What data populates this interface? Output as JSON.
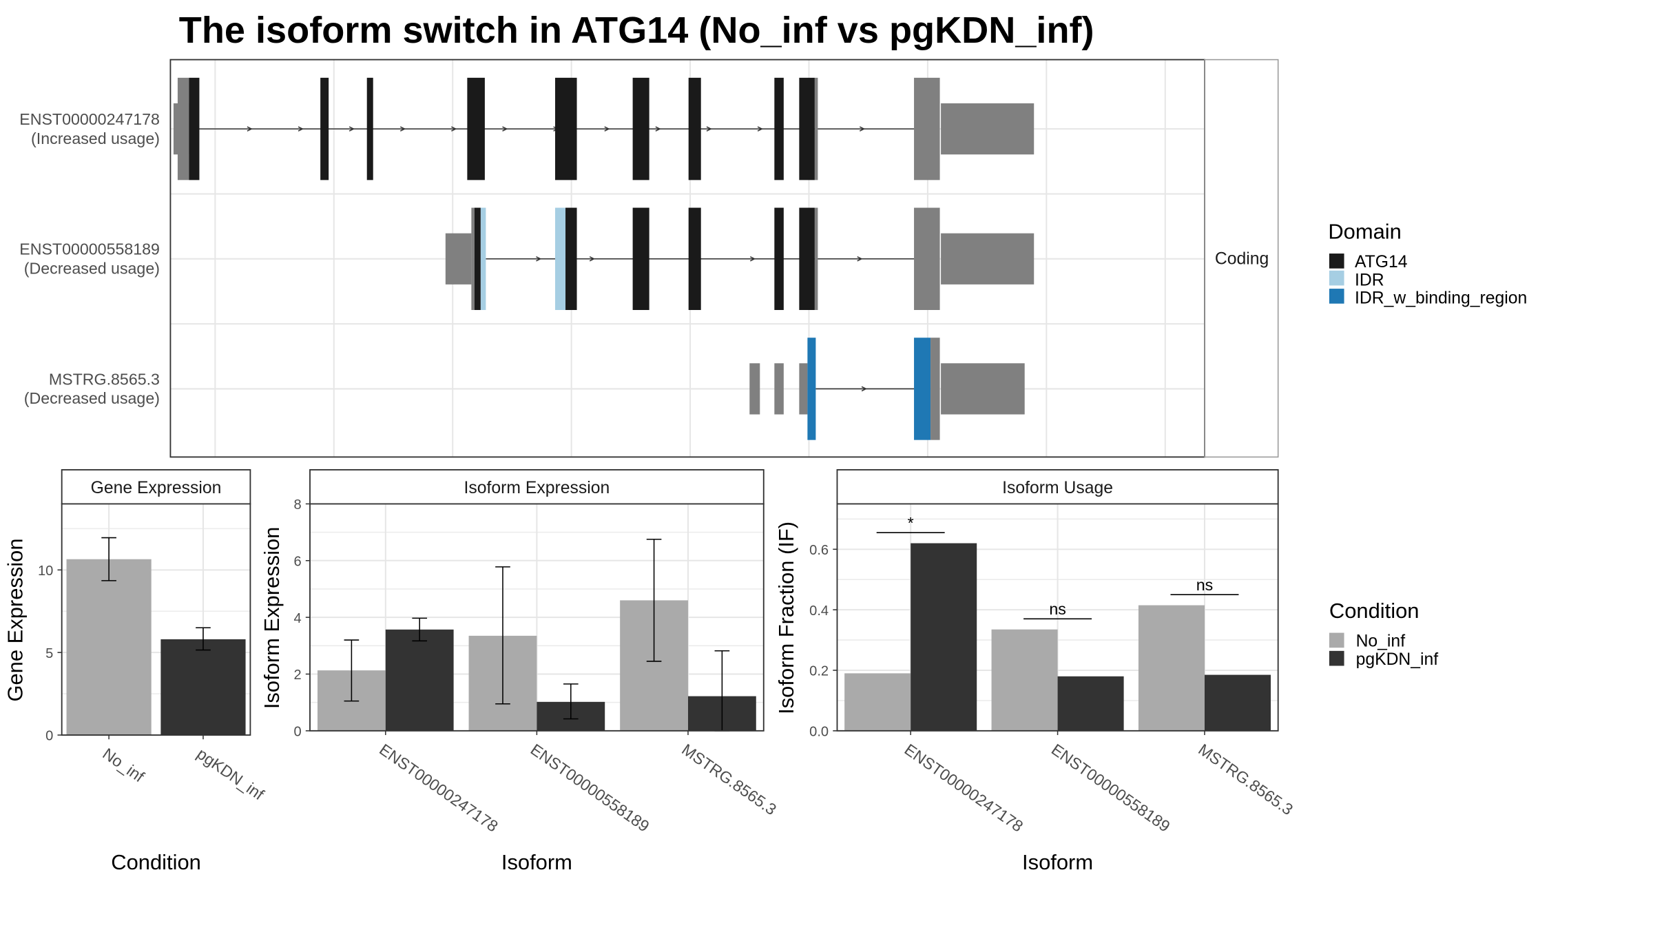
{
  "title": "The isoform switch in ATG14 (No_inf vs pgKDN_inf)",
  "colors": {
    "utr": "#808080",
    "ATG14": "#1a1a1a",
    "IDR": "#a6cee3",
    "IDR_w_binding_region": "#1f78b4",
    "No_inf": "#aaaaaa",
    "pgKDN_inf": "#333333",
    "intron": "#333333"
  },
  "structure": {
    "strip_label": "Coding",
    "isoforms": [
      {
        "id": "ENST00000247178",
        "usage": "(Increased usage)",
        "utr": [
          [
            0.3,
            1.8
          ],
          [
            74.5,
            83.5
          ]
        ],
        "exons": [
          {
            "s": 0.7,
            "e": 1.8,
            "d": "utr"
          },
          {
            "s": 1.8,
            "e": 2.8,
            "d": "ATG14"
          },
          {
            "s": 14.5,
            "e": 15.3,
            "d": "ATG14"
          },
          {
            "s": 19.0,
            "e": 19.6,
            "d": "ATG14"
          },
          {
            "s": 28.7,
            "e": 30.4,
            "d": "ATG14"
          },
          {
            "s": 37.2,
            "e": 39.3,
            "d": "ATG14"
          },
          {
            "s": 44.7,
            "e": 46.3,
            "d": "ATG14"
          },
          {
            "s": 50.1,
            "e": 51.3,
            "d": "ATG14"
          },
          {
            "s": 58.4,
            "e": 59.3,
            "d": "ATG14"
          },
          {
            "s": 60.8,
            "e": 62.3,
            "d": "ATG14"
          },
          {
            "s": 62.3,
            "e": 62.6,
            "d": "utr"
          },
          {
            "s": 71.9,
            "e": 74.4,
            "d": "utr"
          }
        ],
        "intron": [
          2.8,
          71.9
        ]
      },
      {
        "id": "ENST00000558189",
        "usage": "(Decreased usage)",
        "utr": [
          [
            26.6,
            29.1
          ],
          [
            74.5,
            83.5
          ]
        ],
        "exons": [
          {
            "s": 29.1,
            "e": 29.4,
            "d": "utr"
          },
          {
            "s": 29.4,
            "e": 30.0,
            "d": "ATG14"
          },
          {
            "s": 30.0,
            "e": 30.5,
            "d": "IDR"
          },
          {
            "s": 37.2,
            "e": 38.2,
            "d": "IDR"
          },
          {
            "s": 38.2,
            "e": 39.3,
            "d": "ATG14"
          },
          {
            "s": 44.7,
            "e": 46.3,
            "d": "ATG14"
          },
          {
            "s": 50.1,
            "e": 51.3,
            "d": "ATG14"
          },
          {
            "s": 58.4,
            "e": 59.3,
            "d": "ATG14"
          },
          {
            "s": 60.8,
            "e": 62.3,
            "d": "ATG14"
          },
          {
            "s": 62.3,
            "e": 62.6,
            "d": "utr"
          },
          {
            "s": 71.9,
            "e": 74.4,
            "d": "utr"
          }
        ],
        "intron": [
          30.5,
          71.9
        ]
      },
      {
        "id": "MSTRG.8565.3",
        "usage": "(Decreased usage)",
        "utr": [
          [
            56.0,
            57.0
          ],
          [
            58.4,
            59.3
          ],
          [
            60.8,
            61.6
          ],
          [
            74.5,
            82.6
          ]
        ],
        "exons": [
          {
            "s": 61.6,
            "e": 62.4,
            "d": "IDR_w_binding_region"
          },
          {
            "s": 71.9,
            "e": 73.5,
            "d": "IDR_w_binding_region"
          },
          {
            "s": 73.5,
            "e": 74.4,
            "d": "utr"
          }
        ],
        "intron": [
          62.4,
          71.9
        ]
      }
    ]
  },
  "legend_domain": {
    "title": "Domain",
    "items": [
      {
        "label": "ATG14",
        "key": "ATG14"
      },
      {
        "label": "IDR",
        "key": "IDR"
      },
      {
        "label": "IDR_w_binding_region",
        "key": "IDR_w_binding_region"
      }
    ]
  },
  "legend_condition": {
    "title": "Condition",
    "items": [
      {
        "label": "No_inf",
        "key": "No_inf"
      },
      {
        "label": "pgKDN_inf",
        "key": "pgKDN_inf"
      }
    ]
  },
  "chart_data": [
    {
      "type": "bar",
      "title": "Gene Expression",
      "xlabel": "Condition",
      "ylabel": "Gene Expression",
      "ylim": [
        0,
        14
      ],
      "yticks": [
        0,
        5,
        10
      ],
      "categories": [
        "No_inf",
        "pgKDN_inf"
      ],
      "values": [
        10.65,
        5.8
      ],
      "errors": [
        [
          9.35,
          11.95
        ],
        [
          5.15,
          6.5
        ]
      ]
    },
    {
      "type": "bar",
      "title": "Isoform Expression",
      "xlabel": "Isoform",
      "ylabel": "Isoform Expression",
      "ylim": [
        0,
        8
      ],
      "yticks": [
        0,
        2,
        4,
        6,
        8
      ],
      "categories": [
        "ENST00000247178",
        "ENST00000558189",
        "MSTRG.8565.3"
      ],
      "series": [
        {
          "name": "No_inf",
          "values": [
            2.13,
            3.35,
            4.6
          ],
          "errors": [
            [
              1.05,
              3.2
            ],
            [
              0.95,
              5.78
            ],
            [
              2.45,
              6.75
            ]
          ]
        },
        {
          "name": "pgKDN_inf",
          "values": [
            3.57,
            1.02,
            1.22
          ],
          "errors": [
            [
              3.17,
              3.97
            ],
            [
              0.42,
              1.65
            ],
            [
              0.0,
              2.82
            ]
          ]
        }
      ]
    },
    {
      "type": "bar",
      "title": "Isoform Usage",
      "xlabel": "Isoform",
      "ylabel": "Isoform Fraction (IF)",
      "ylim": [
        0,
        0.75
      ],
      "yticks": [
        0.0,
        0.2,
        0.4,
        0.6
      ],
      "categories": [
        "ENST00000247178",
        "ENST00000558189",
        "MSTRG.8565.3"
      ],
      "series": [
        {
          "name": "No_inf",
          "values": [
            0.19,
            0.335,
            0.415
          ]
        },
        {
          "name": "pgKDN_inf",
          "values": [
            0.62,
            0.18,
            0.185
          ]
        }
      ],
      "annotations": [
        {
          "category": "ENST00000247178",
          "label": "*",
          "y": 0.655
        },
        {
          "category": "ENST00000558189",
          "label": "ns",
          "y": 0.37
        },
        {
          "category": "MSTRG.8565.3",
          "label": "ns",
          "y": 0.45
        }
      ]
    }
  ]
}
